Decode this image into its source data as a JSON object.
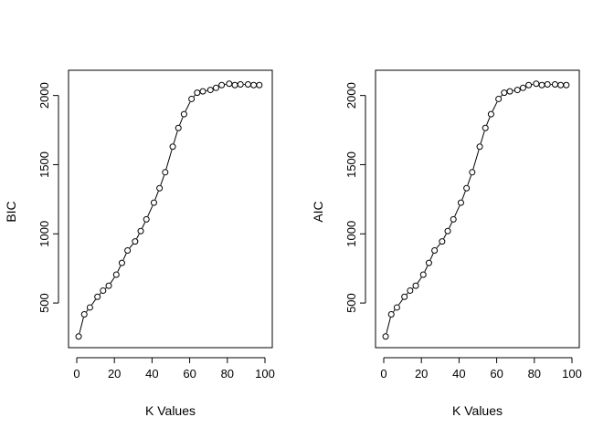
{
  "chart_data": [
    {
      "type": "line",
      "xlabel": "K Values",
      "ylabel": "BIC",
      "xlim": [
        0,
        100
      ],
      "ylim": [
        250,
        2090
      ],
      "xticks": [
        0,
        20,
        40,
        60,
        80,
        100
      ],
      "yticks": [
        500,
        1000,
        1500,
        2000
      ],
      "markers": "open-circle",
      "x": [
        1,
        4,
        7,
        11,
        14,
        17,
        21,
        24,
        27,
        31,
        34,
        37,
        41,
        44,
        47,
        51,
        54,
        57,
        61,
        64,
        67,
        71,
        74,
        77,
        81,
        84,
        87,
        91,
        94,
        97
      ],
      "values": [
        258,
        418,
        468,
        545,
        590,
        625,
        705,
        790,
        880,
        945,
        1020,
        1105,
        1225,
        1330,
        1445,
        1630,
        1765,
        1865,
        1975,
        2020,
        2030,
        2040,
        2055,
        2075,
        2085,
        2075,
        2080,
        2080,
        2075,
        2075
      ]
    },
    {
      "type": "line",
      "xlabel": "K Values",
      "ylabel": "AIC",
      "xlim": [
        0,
        100
      ],
      "ylim": [
        250,
        2090
      ],
      "xticks": [
        0,
        20,
        40,
        60,
        80,
        100
      ],
      "yticks": [
        500,
        1000,
        1500,
        2000
      ],
      "markers": "open-circle",
      "x": [
        1,
        4,
        7,
        11,
        14,
        17,
        21,
        24,
        27,
        31,
        34,
        37,
        41,
        44,
        47,
        51,
        54,
        57,
        61,
        64,
        67,
        71,
        74,
        77,
        81,
        84,
        87,
        91,
        94,
        97
      ],
      "values": [
        258,
        418,
        468,
        545,
        590,
        625,
        705,
        790,
        880,
        945,
        1020,
        1105,
        1225,
        1330,
        1445,
        1630,
        1765,
        1865,
        1975,
        2020,
        2030,
        2040,
        2055,
        2075,
        2085,
        2075,
        2080,
        2080,
        2075,
        2075
      ]
    }
  ]
}
